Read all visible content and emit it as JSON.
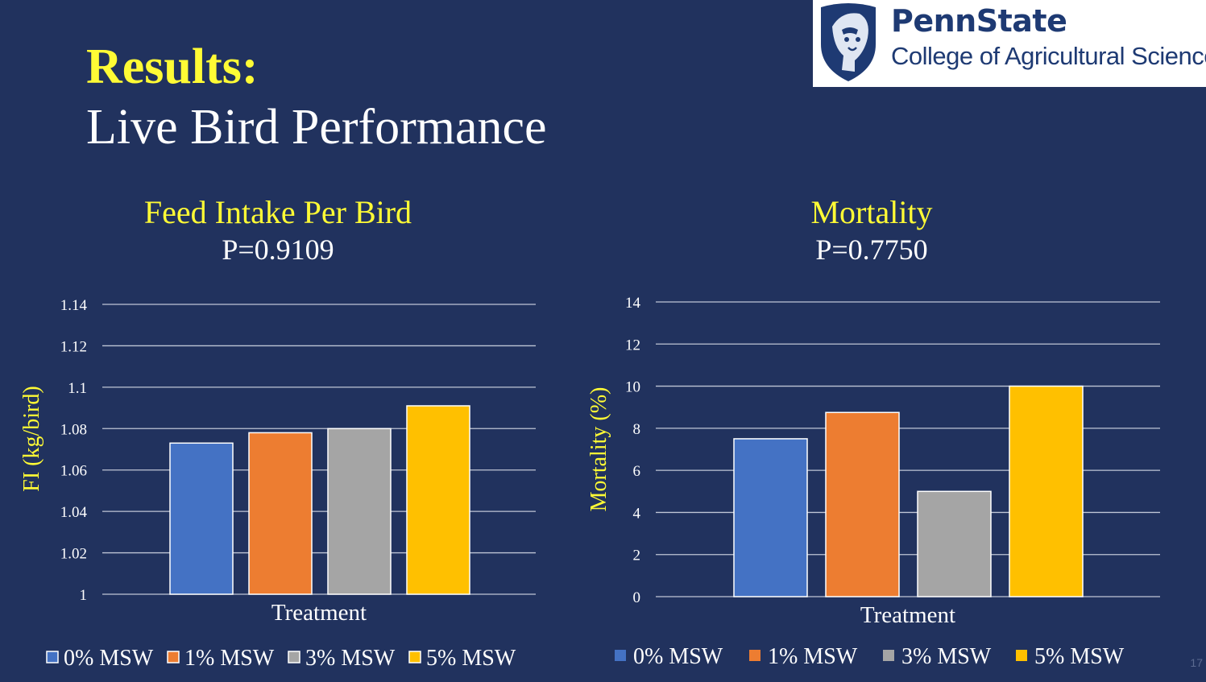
{
  "slide": {
    "title": "Results:",
    "subtitle": "Live Bird Performance",
    "slide_number": "17"
  },
  "logo": {
    "name": "PennState",
    "college": "College of Agricultural Sciences",
    "icon": "nittany-lion-shield-icon"
  },
  "colors": {
    "background": "#21325e",
    "accent_text": "#fffb35",
    "series": [
      "#4472c4",
      "#ed7d31",
      "#a5a5a5",
      "#ffc000"
    ]
  },
  "chart_data": [
    {
      "type": "bar",
      "title": "Feed Intake Per Bird",
      "subtitle": "P=0.9109",
      "xlabel": "Treatment",
      "ylabel": "FI (kg/bird)",
      "ylim": [
        1,
        1.14
      ],
      "ytick_step": 0.02,
      "yticks": [
        "1",
        "1.02",
        "1.04",
        "1.06",
        "1.08",
        "1.1",
        "1.12",
        "1.14"
      ],
      "grid": true,
      "legend": "bottom",
      "legend_marker": "outlined",
      "series": [
        {
          "name": "0% MSW",
          "values": [
            1.073
          ]
        },
        {
          "name": "1% MSW",
          "values": [
            1.078
          ]
        },
        {
          "name": "3% MSW",
          "values": [
            1.08
          ]
        },
        {
          "name": "5% MSW",
          "values": [
            1.091
          ]
        }
      ]
    },
    {
      "type": "bar",
      "title": "Mortality",
      "subtitle": "P=0.7750",
      "xlabel": "Treatment",
      "ylabel": "Mortality (%)",
      "ylim": [
        0,
        14
      ],
      "ytick_step": 2,
      "yticks": [
        "0",
        "2",
        "4",
        "6",
        "8",
        "10",
        "12",
        "14"
      ],
      "grid": true,
      "legend": "bottom",
      "legend_marker": "filled",
      "series": [
        {
          "name": "0% MSW",
          "values": [
            7.5
          ]
        },
        {
          "name": "1% MSW",
          "values": [
            8.75
          ]
        },
        {
          "name": "3% MSW",
          "values": [
            5.0
          ]
        },
        {
          "name": "5% MSW",
          "values": [
            10.0
          ]
        }
      ]
    }
  ]
}
